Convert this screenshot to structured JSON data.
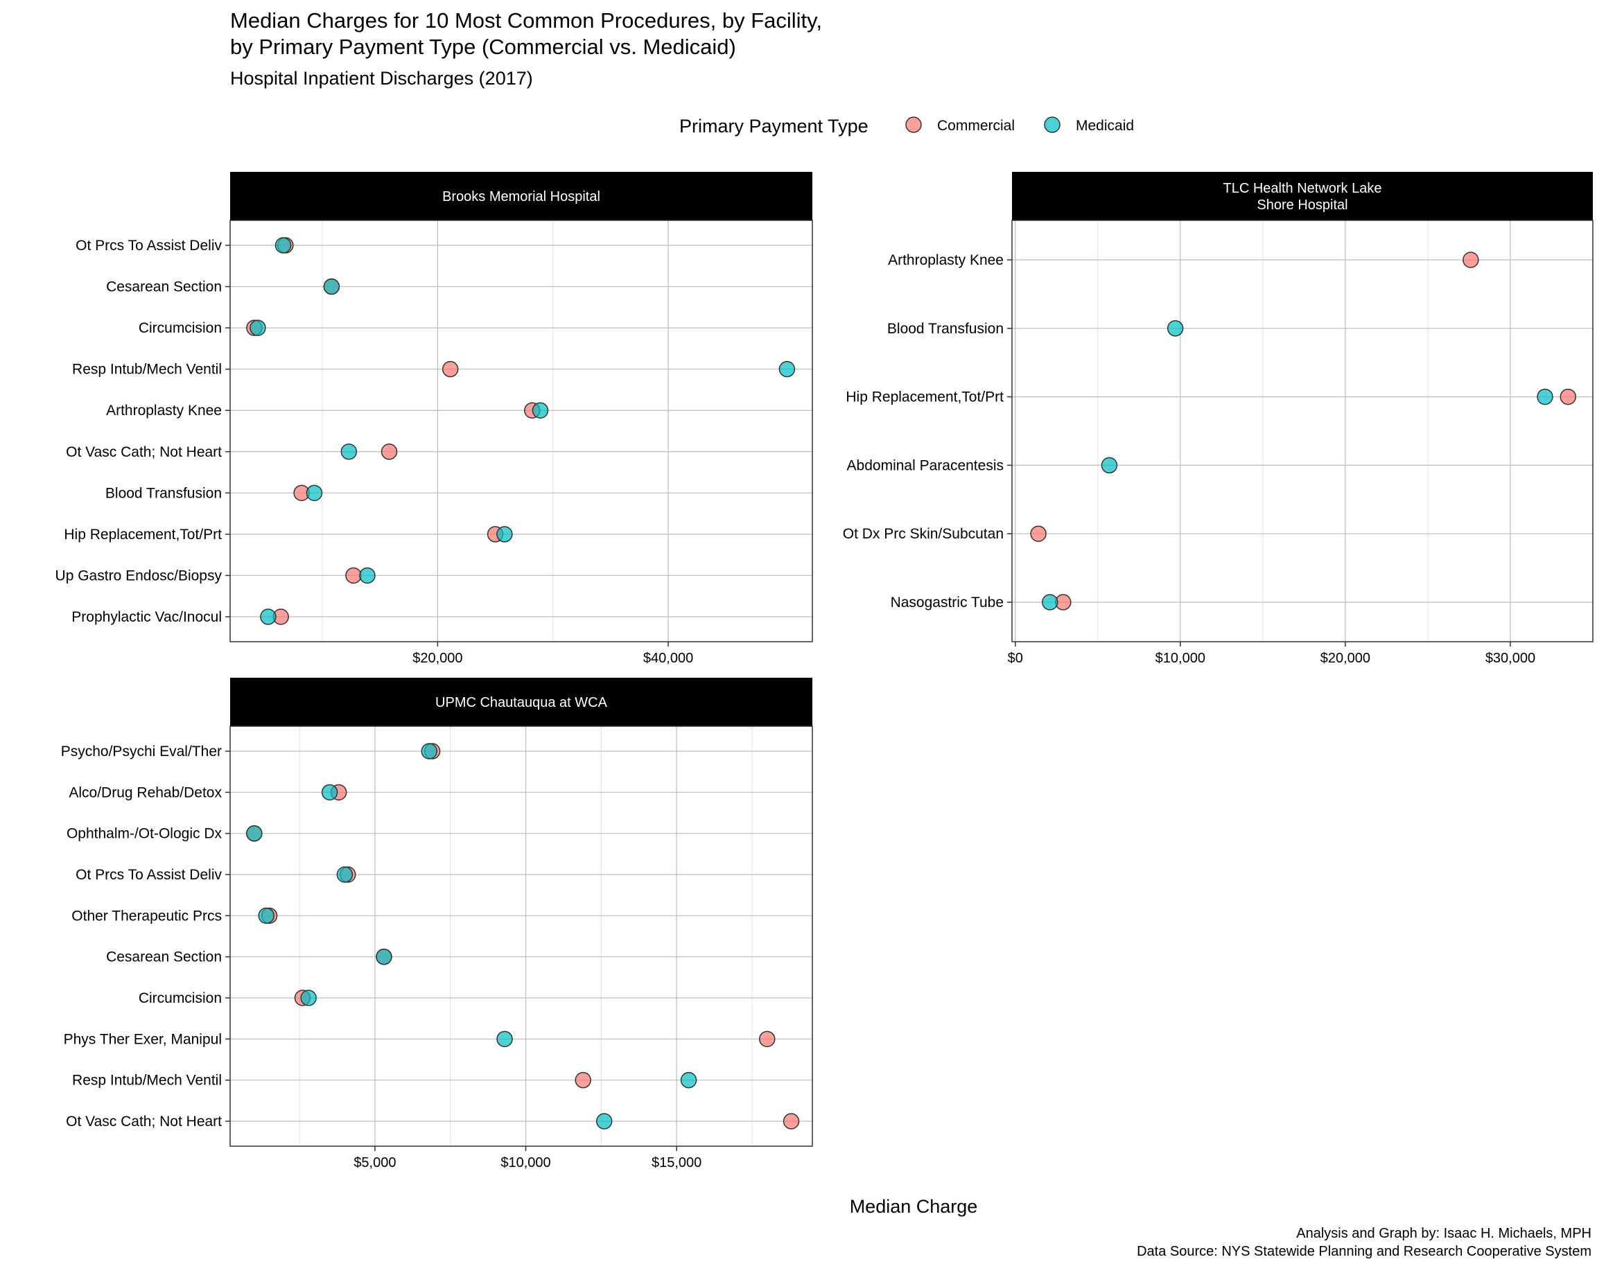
{
  "colors": {
    "commercial": "#F8766D",
    "medicaid": "#00BFC4",
    "strip_bg": "#000000",
    "grid": "#bdbdbd"
  },
  "page": {
    "title_line1": "Median Charges for 10 Most Common Procedures, by Facility,",
    "title_line2": "by Primary Payment Type (Commercial vs. Medicaid)",
    "subtitle": "Hospital Inpatient Discharges (2017)",
    "legend_title": "Primary Payment Type",
    "xlabel": "Median Charge",
    "caption_line1": "Analysis and Graph by: Isaac H. Michaels, MPH",
    "caption_line2": "Data Source: NYS Statewide Planning and Research Cooperative System"
  },
  "chart_data": [
    {
      "type": "scatter",
      "facility_lines": [
        "Brooks Memorial Hospital"
      ],
      "series": [
        {
          "name": "Commercial"
        },
        {
          "name": "Medicaid"
        }
      ],
      "x_ticks": [
        {
          "value": 20000,
          "label": "$20,000"
        },
        {
          "value": 40000,
          "label": "$40,000"
        }
      ],
      "x_minor": [
        10000,
        30000
      ],
      "xlim": [
        2000,
        52500
      ],
      "grid": true,
      "categories": [
        "Ot Prcs To Assist Deliv",
        "Cesarean Section",
        "Circumcision",
        "Resp Intub/Mech Ventil",
        "Arthroplasty Knee",
        "Ot Vasc Cath; Not Heart",
        "Blood Transfusion",
        "Hip Replacement,Tot/Prt",
        "Up Gastro Endosc/Biopsy",
        "Prophylactic Vac/Inocul"
      ],
      "commercial": [
        6800,
        10800,
        4100,
        21100,
        28200,
        15800,
        8200,
        25000,
        12700,
        6400
      ],
      "medicaid": [
        6600,
        10800,
        4400,
        50300,
        28900,
        12300,
        9300,
        25800,
        13900,
        5300
      ]
    },
    {
      "type": "scatter",
      "facility_lines": [
        "TLC Health Network Lake",
        "Shore Hospital"
      ],
      "series": [
        {
          "name": "Commercial"
        },
        {
          "name": "Medicaid"
        }
      ],
      "x_ticks": [
        {
          "value": 0,
          "label": "$0"
        },
        {
          "value": 10000,
          "label": "$10,000"
        },
        {
          "value": 20000,
          "label": "$20,000"
        },
        {
          "value": 30000,
          "label": "$30,000"
        }
      ],
      "x_minor": [
        5000,
        15000,
        25000
      ],
      "xlim": [
        -200,
        35000
      ],
      "grid": true,
      "categories": [
        "Arthroplasty Knee",
        "Blood Transfusion",
        "Hip Replacement,Tot/Prt",
        "Abdominal Paracentesis",
        "Ot Dx Prc Skin/Subcutan",
        "Nasogastric Tube"
      ],
      "commercial": [
        27600,
        null,
        33500,
        null,
        1400,
        2900
      ],
      "medicaid": [
        null,
        9700,
        32100,
        5700,
        null,
        2100
      ]
    },
    {
      "type": "scatter",
      "facility_lines": [
        "UPMC Chautauqua at WCA"
      ],
      "series": [
        {
          "name": "Commercial"
        },
        {
          "name": "Medicaid"
        }
      ],
      "x_ticks": [
        {
          "value": 5000,
          "label": "$5,000"
        },
        {
          "value": 10000,
          "label": "$10,000"
        },
        {
          "value": 15000,
          "label": "$15,000"
        }
      ],
      "x_minor": [
        2500,
        7500,
        12500,
        17500
      ],
      "xlim": [
        200,
        19500
      ],
      "grid": true,
      "categories": [
        "Psycho/Psychi Eval/Ther",
        "Alco/Drug Rehab/Detox",
        "Ophthalm-/Ot-Ologic Dx",
        "Ot Prcs To Assist Deliv",
        "Other Therapeutic Prcs",
        "Cesarean Section",
        "Circumcision",
        "Phys Ther Exer, Manipul",
        "Resp Intub/Mech Ventil",
        "Ot Vasc Cath; Not Heart"
      ],
      "commercial": [
        6900,
        3800,
        1000,
        4100,
        1500,
        5300,
        2600,
        18000,
        11900,
        18800
      ],
      "medicaid": [
        6800,
        3500,
        1000,
        4000,
        1400,
        5300,
        2800,
        9300,
        15400,
        12600
      ]
    }
  ]
}
